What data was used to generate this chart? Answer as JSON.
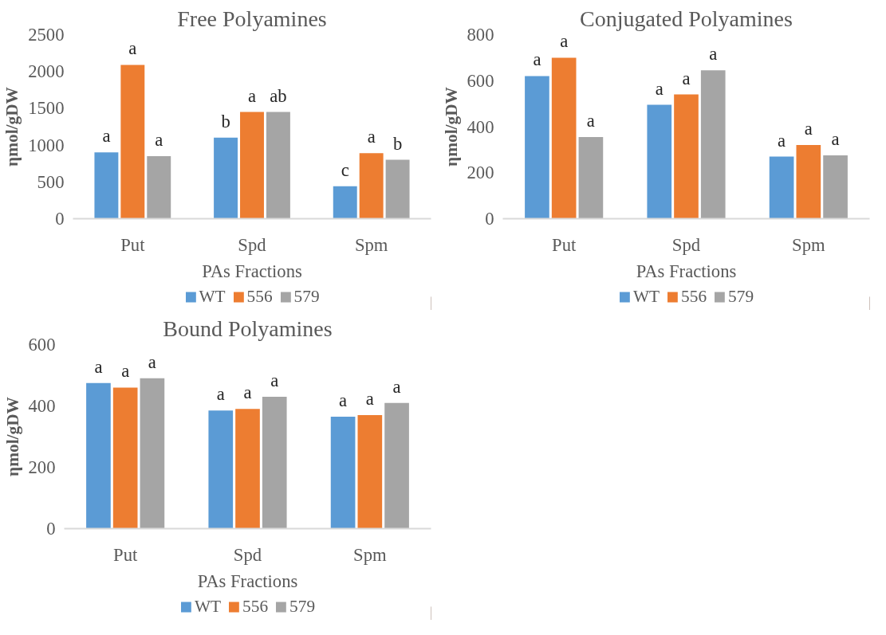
{
  "chart_data": [
    {
      "type": "bar",
      "title": "Free Polyamines",
      "xlabel": "PAs Fractions",
      "ylabel": "ηmol/gDW",
      "categories": [
        "Put",
        "Spd",
        "Spm"
      ],
      "ylim": [
        0,
        2500
      ],
      "yticks": [
        0,
        500,
        1000,
        1500,
        2000,
        2500
      ],
      "legend": "bottom",
      "series": [
        {
          "name": "WT",
          "color": "#5b9bd5",
          "values": [
            900,
            1100,
            440
          ],
          "value_labels": [
            "a",
            "b",
            "c"
          ]
        },
        {
          "name": "556",
          "color": "#ed7d31",
          "values": [
            2090,
            1450,
            890
          ],
          "value_labels": [
            "a",
            "a",
            "a"
          ]
        },
        {
          "name": "579",
          "color": "#a5a5a5",
          "values": [
            850,
            1450,
            800
          ],
          "value_labels": [
            "a",
            "ab",
            "b"
          ]
        }
      ]
    },
    {
      "type": "bar",
      "title": "Conjugated Polyamines",
      "xlabel": "PAs Fractions",
      "ylabel": "ηmol/gDW",
      "categories": [
        "Put",
        "Spd",
        "Spm"
      ],
      "ylim": [
        0,
        800
      ],
      "yticks": [
        0,
        200,
        400,
        600,
        800
      ],
      "legend": "bottom",
      "series": [
        {
          "name": "WT",
          "color": "#5b9bd5",
          "values": [
            620,
            495,
            270
          ],
          "value_labels": [
            "a",
            "a",
            "a"
          ]
        },
        {
          "name": "556",
          "color": "#ed7d31",
          "values": [
            700,
            540,
            320
          ],
          "value_labels": [
            "a",
            "a",
            "a"
          ]
        },
        {
          "name": "579",
          "color": "#a5a5a5",
          "values": [
            355,
            645,
            275
          ],
          "value_labels": [
            "a",
            "a",
            "a"
          ]
        }
      ]
    },
    {
      "type": "bar",
      "title": "Bound Polyamines",
      "xlabel": "PAs Fractions",
      "ylabel": "ηmol/gDW",
      "categories": [
        "Put",
        "Spd",
        "Spm"
      ],
      "ylim": [
        0,
        600
      ],
      "yticks": [
        0,
        200,
        400,
        600
      ],
      "legend": "bottom",
      "series": [
        {
          "name": "WT",
          "color": "#5b9bd5",
          "values": [
            475,
            385,
            365
          ],
          "value_labels": [
            "a",
            "a",
            "a"
          ]
        },
        {
          "name": "556",
          "color": "#ed7d31",
          "values": [
            460,
            390,
            370
          ],
          "value_labels": [
            "a",
            "a",
            "a"
          ]
        },
        {
          "name": "579",
          "color": "#a5a5a5",
          "values": [
            490,
            430,
            410
          ],
          "value_labels": [
            "a",
            "a",
            "a"
          ]
        }
      ]
    }
  ]
}
